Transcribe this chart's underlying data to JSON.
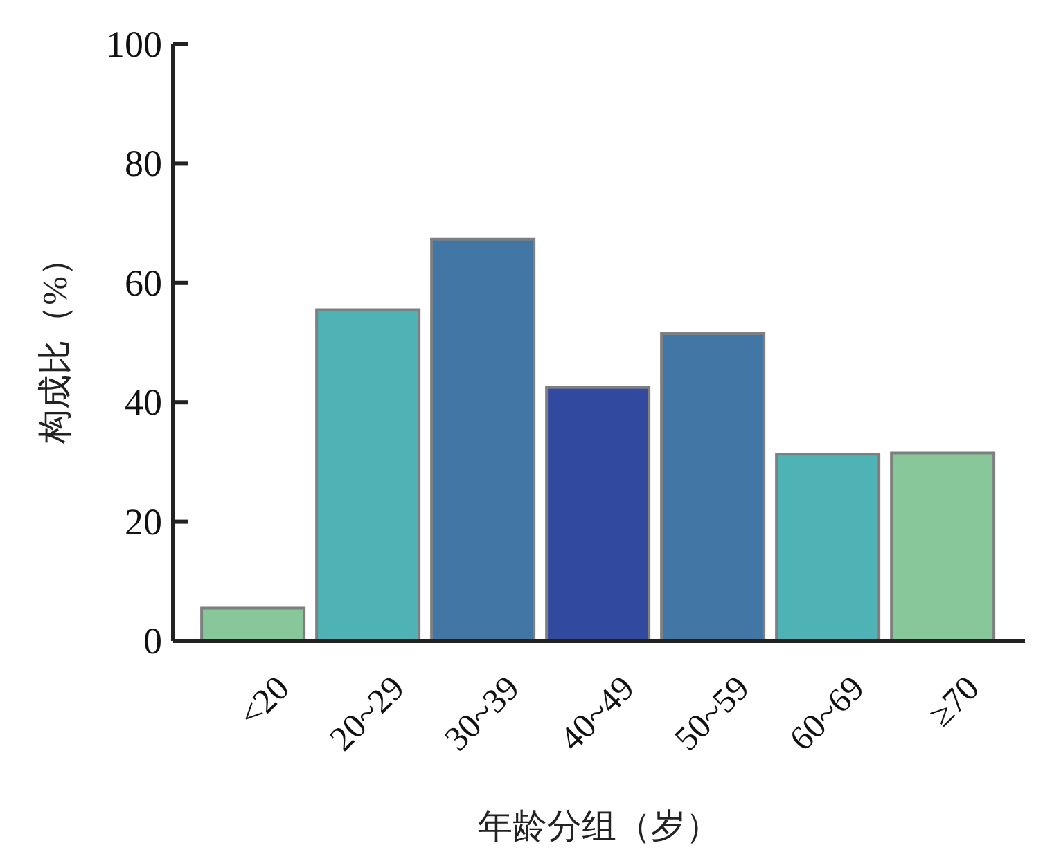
{
  "chart_data": {
    "type": "bar",
    "categories": [
      "<20",
      "20~29",
      "30~39",
      "40~49",
      "50~59",
      "60~69",
      "≥70"
    ],
    "values": [
      5.5,
      55.5,
      67.3,
      42.5,
      51.5,
      31.3,
      31.5
    ],
    "colors": [
      "#88c79a",
      "#4fb3b5",
      "#4276a5",
      "#3249a0",
      "#4276a5",
      "#4fb3b5",
      "#88c79a"
    ],
    "xlabel": "年龄分组（岁）",
    "ylabel": "构成比（%）",
    "ylim": [
      0,
      100
    ],
    "yticks": [
      0,
      20,
      40,
      60,
      80,
      100
    ]
  }
}
